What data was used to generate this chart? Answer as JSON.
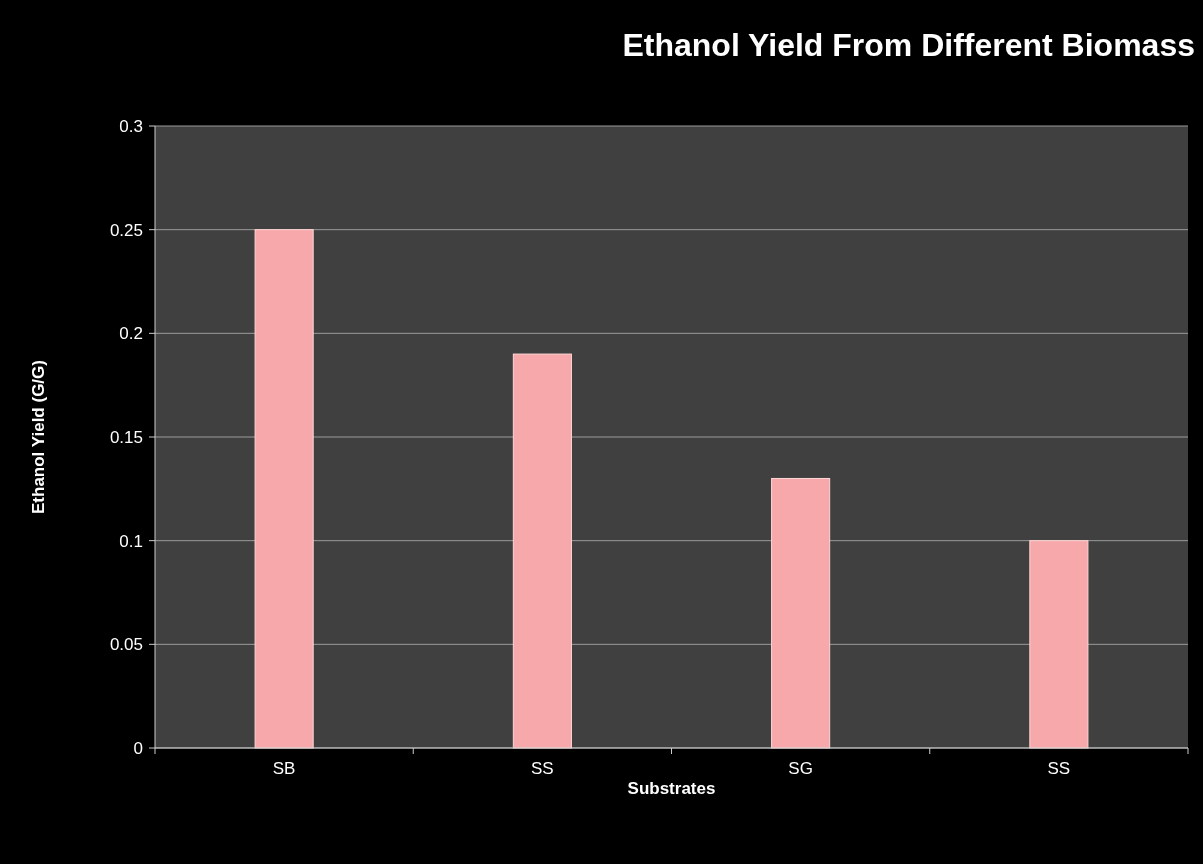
{
  "chart_data": {
    "type": "bar",
    "title": "Ethanol Yield From Different Biomass",
    "xlabel": "Substrates",
    "ylabel": "Ethanol Yield (G/G)",
    "categories": [
      "SB",
      "SS",
      "SG",
      "SS"
    ],
    "values": [
      0.25,
      0.19,
      0.13,
      0.1
    ],
    "color": "#f7a8aa",
    "ylim": [
      0,
      0.3
    ],
    "yticks": [
      0,
      0.05,
      0.1,
      0.15,
      0.2,
      0.25,
      0.3
    ],
    "grid": "y"
  }
}
